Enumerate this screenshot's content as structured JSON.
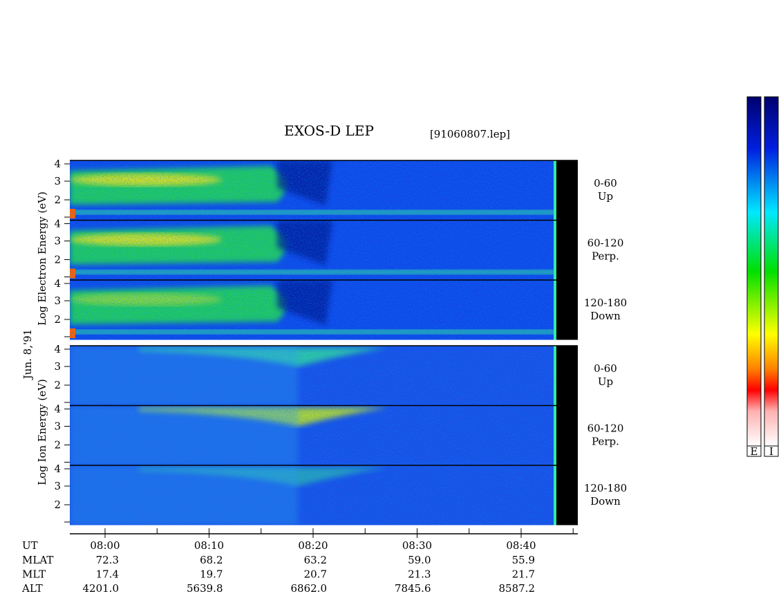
{
  "header": {
    "title": "EXOS-D LEP",
    "file": "[91060807.lep]"
  },
  "date": "Jun. 8,'91",
  "electron": {
    "axis_label": "Log Electron Energy (eV)",
    "panels": [
      {
        "angle": "0-60",
        "direction": "Up",
        "ticks": [
          "4",
          "3",
          "2"
        ]
      },
      {
        "angle": "60-120",
        "direction": "Perp.",
        "ticks": [
          "4",
          "3",
          "2"
        ]
      },
      {
        "angle": "120-180",
        "direction": "Down",
        "ticks": [
          "4",
          "3",
          "2"
        ]
      }
    ]
  },
  "ion": {
    "axis_label": "Log Ion Energy (eV)",
    "panels": [
      {
        "angle": "0-60",
        "direction": "Up",
        "ticks": [
          "4",
          "3",
          "2"
        ]
      },
      {
        "angle": "60-120",
        "direction": "Perp.",
        "ticks": [
          "4",
          "3",
          "2"
        ]
      },
      {
        "angle": "120-180",
        "direction": "Down",
        "ticks": [
          "4",
          "3",
          "2"
        ]
      }
    ]
  },
  "time_axis": {
    "label": "UT",
    "ticks": [
      "08:00",
      "08:10",
      "08:20",
      "08:30",
      "08:40"
    ]
  },
  "table": {
    "labels": [
      "MLAT",
      "MLT",
      "ALT"
    ],
    "rows": [
      [
        "72.3",
        "68.2",
        "63.2",
        "59.0",
        "55.9"
      ],
      [
        "17.4",
        "19.7",
        "20.7",
        "21.3",
        "21.7"
      ],
      [
        "4201.0",
        "5639.8",
        "6862.0",
        "7845.6",
        "8587.2"
      ]
    ]
  },
  "colorbar": {
    "labels": [
      "E",
      "I"
    ]
  }
}
